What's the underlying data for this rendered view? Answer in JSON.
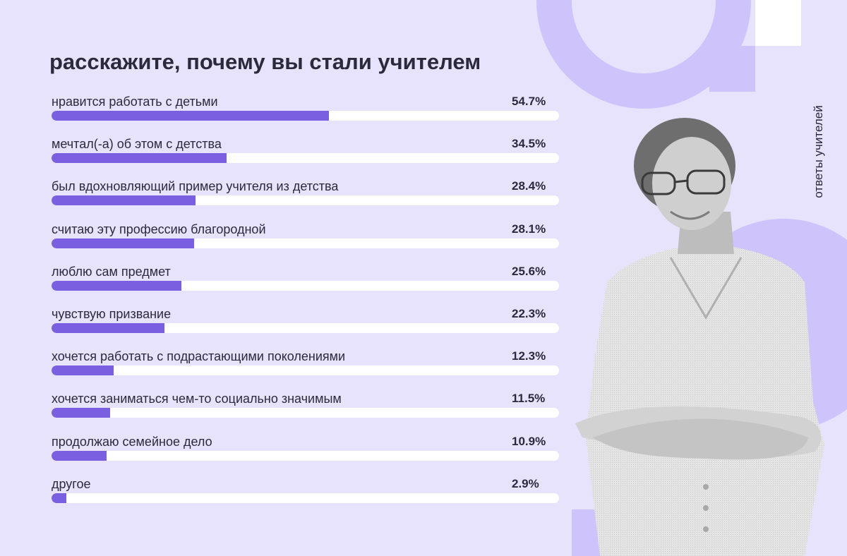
{
  "title": "расскажите, почему вы стали учителем",
  "side_caption": "ответы учителей",
  "colors": {
    "background": "#e8e3fd",
    "accent": "#7a5fe0",
    "track": "#ffffff",
    "decor": "#cec4fb"
  },
  "photo": {
    "subject": "teacher-portrait"
  },
  "chart_data": {
    "type": "bar",
    "orientation": "horizontal",
    "title": "расскажите, почему вы стали учителем",
    "xlim": [
      0,
      100
    ],
    "categories": [
      "нравится работать с детьми",
      "мечтал(-а) об этом с детства",
      "был вдохновляющий пример учителя из детства",
      "считаю эту профессию благородной",
      "люблю сам предмет",
      "чувствую призвание",
      "хочется работать с подрастающими поколениями",
      "хочется заниматься чем-то социально значимым",
      "продолжаю семейное дело",
      "другое"
    ],
    "values": [
      54.7,
      34.5,
      28.4,
      28.1,
      25.6,
      22.3,
      12.3,
      11.5,
      10.9,
      2.9
    ],
    "value_labels": [
      "54.7%",
      "34.5%",
      "28.4%",
      "28.1%",
      "25.6%",
      "22.3%",
      "12.3%",
      "11.5%",
      "10.9%",
      "2.9%"
    ]
  }
}
